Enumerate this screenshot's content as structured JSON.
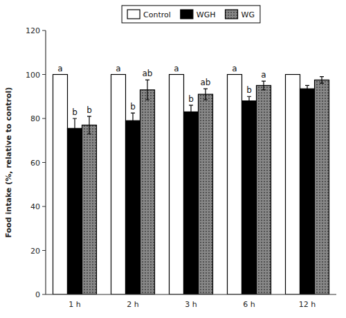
{
  "chart_data": {
    "type": "bar",
    "categories": [
      "1 h",
      "2 h",
      "3 h",
      "6 h",
      "12 h"
    ],
    "series": [
      {
        "name": "Control",
        "color": "#ffffff",
        "values": [
          100,
          100,
          100,
          100,
          100
        ],
        "annotations": [
          "a",
          "a",
          "a",
          "a",
          null
        ]
      },
      {
        "name": "WGH",
        "color": "#000000",
        "values": [
          75.5,
          79.0,
          83.0,
          88.0,
          93.5
        ],
        "errors": [
          4.5,
          3.5,
          3.0,
          2.0,
          1.5
        ],
        "annotations": [
          "b",
          "b",
          "b",
          "b",
          null
        ]
      },
      {
        "name": "WG",
        "color": "#888888",
        "values": [
          77.0,
          93.0,
          91.0,
          95.0,
          97.5
        ],
        "errors": [
          4.0,
          4.5,
          2.5,
          2.0,
          1.5
        ],
        "annotations": [
          "b",
          "ab",
          "ab",
          "a",
          null
        ]
      }
    ],
    "ylabel": "Food intake (%, relative to control)",
    "ylim": [
      0,
      120
    ],
    "yticks": [
      0,
      20,
      40,
      60,
      80,
      100,
      120
    ],
    "grid": false,
    "legend": "top"
  }
}
